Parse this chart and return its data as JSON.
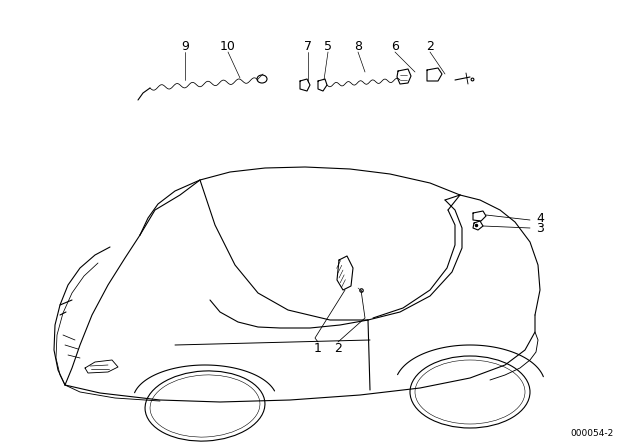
{
  "background_color": "#ffffff",
  "diagram_code": "000054-2",
  "line_color": "#000000",
  "text_color": "#000000",
  "lw": 0.8
}
